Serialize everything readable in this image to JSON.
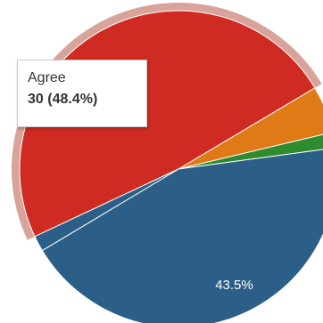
{
  "chart_data": {
    "type": "pie",
    "slices": [
      {
        "name": "Agree",
        "value": 30,
        "percent": 48.4,
        "color": "#d02b22",
        "hovered": true
      },
      {
        "name": "",
        "value": 3,
        "percent": 4.8,
        "color": "#e07a17"
      },
      {
        "name": "",
        "value": 1,
        "percent": 1.6,
        "color": "#2e8b2e"
      },
      {
        "name": "",
        "value": 27,
        "percent": 43.5,
        "color": "#2c5f87",
        "label": "43.5%"
      },
      {
        "name": "",
        "value": 1,
        "percent": 1.6,
        "color": "#2c5f87"
      }
    ],
    "tooltip": {
      "label": "Agree",
      "value_text": "30 (48.4%)"
    },
    "halo_color": "#d8a39a"
  }
}
